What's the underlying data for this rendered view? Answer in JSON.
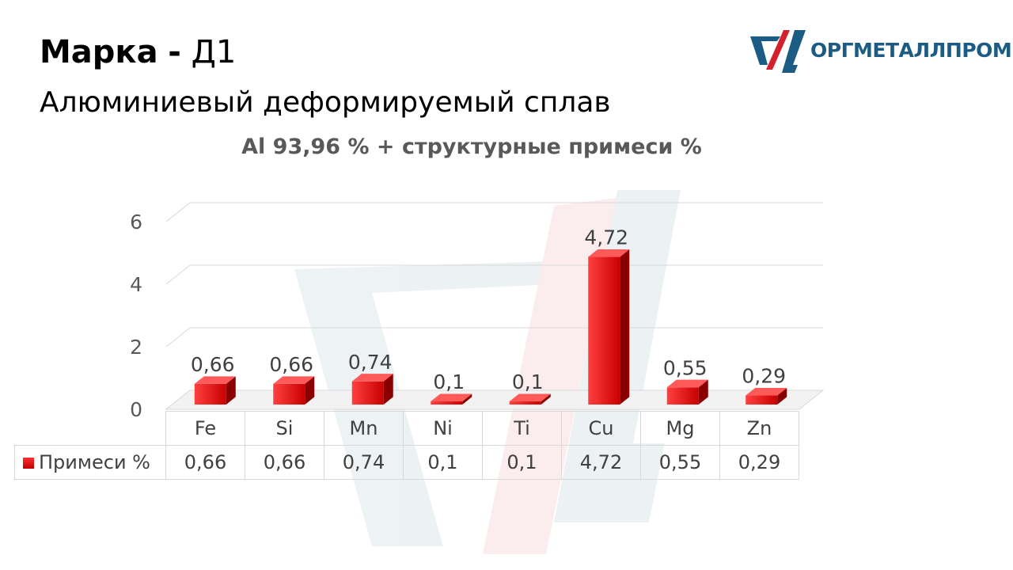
{
  "header": {
    "grade_label": "Марка",
    "grade_separator": "-",
    "grade_value": "Д1",
    "subtitle": "Алюминиевый деформируемый сплав"
  },
  "logo": {
    "text": "ОРГМЕТАЛЛПРОМ"
  },
  "colors": {
    "bar": "#e00000",
    "logo_blue": "#1c5c84",
    "logo_red": "#d3212b"
  },
  "chart_data": {
    "type": "bar",
    "title": "Al 93,96 % + структурные примеси %",
    "categories": [
      "Fe",
      "Si",
      "Mn",
      "Ni",
      "Ti",
      "Cu",
      "Mg",
      "Zn"
    ],
    "series": [
      {
        "name": "Примеси %",
        "values": [
          0.66,
          0.66,
          0.74,
          0.1,
          0.1,
          4.72,
          0.55,
          0.29
        ],
        "labels": [
          "0,66",
          "0,66",
          "0,74",
          "0,1",
          "0,1",
          "4,72",
          "0,55",
          "0,29"
        ]
      }
    ],
    "y_ticks": [
      "0",
      "2",
      "4",
      "6"
    ],
    "ylim": [
      0,
      6
    ],
    "grid": true,
    "style": "3d-columns",
    "data_table": true
  }
}
